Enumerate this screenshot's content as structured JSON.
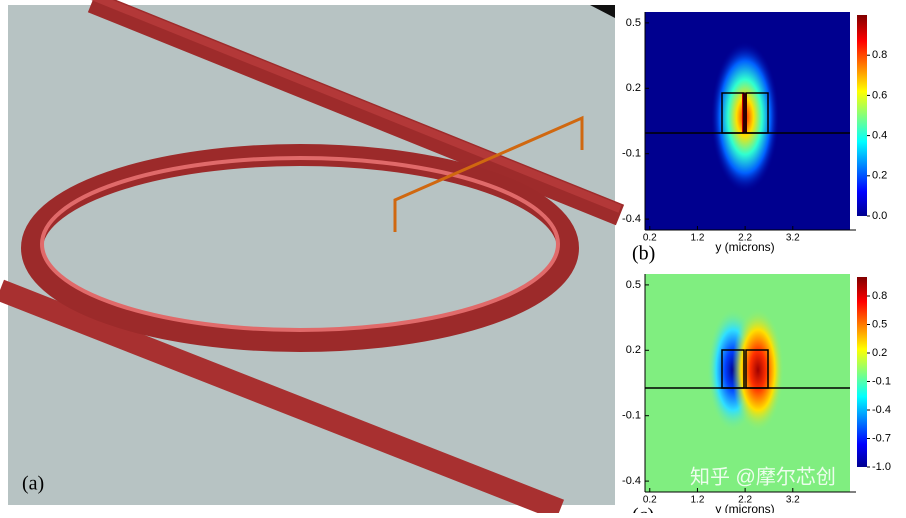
{
  "figure": {
    "panels": [
      {
        "label": "(a)"
      },
      {
        "label": "(b)",
        "x_label": "y (microns)",
        "xlim": [
          0.1,
          4.4
        ],
        "ylim": [
          -0.45,
          0.55
        ],
        "xticks": [
          0.2,
          1.2,
          2.2,
          3.2
        ],
        "yticks": [
          0.5,
          0.2,
          -0.1,
          -0.4
        ],
        "clim": [
          0,
          1
        ],
        "cticks": [
          0.8,
          0.6,
          0.4,
          0.2,
          {
            "value": 0,
            "label": "0.0"
          }
        ]
      },
      {
        "label": "(c)",
        "x_label": "y (microns)",
        "xlim": [
          0.1,
          4.4
        ],
        "ylim": [
          -0.45,
          0.55
        ],
        "xticks": [
          0.2,
          1.2,
          2.2,
          3.2
        ],
        "yticks": [
          0.5,
          0.2,
          -0.1,
          -0.4
        ],
        "clim": [
          -1,
          1
        ],
        "cticks": [
          0.8,
          0.5,
          0.2,
          -0.1,
          -0.4,
          -0.7,
          {
            "value": -1,
            "label": "-1.0"
          }
        ]
      }
    ],
    "watermark": "知乎 @摩尔芯创"
  }
}
